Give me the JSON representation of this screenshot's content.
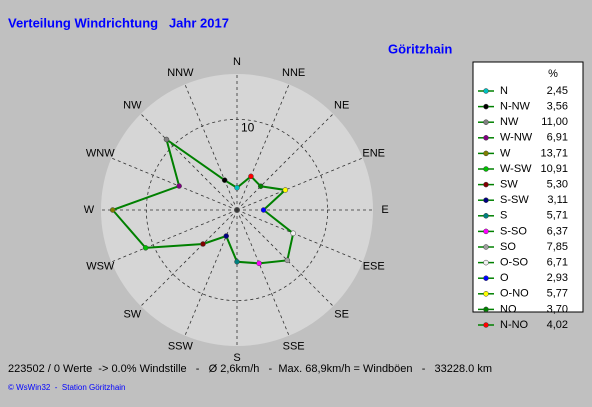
{
  "chart_data": {
    "type": "windrose",
    "title": "Verteilung Windrichtung   Jahr 2017",
    "subtitle": "Göritzhain",
    "direction_labels": [
      "N",
      "NNE",
      "NE",
      "ENE",
      "E",
      "ESE",
      "SE",
      "SSE",
      "S",
      "SSW",
      "SW",
      "WSW",
      "W",
      "WNW",
      "NW",
      "NNW"
    ],
    "legend_header": "%",
    "categories": [
      "N",
      "N-NW",
      "NW",
      "W-NW",
      "W",
      "W-SW",
      "SW",
      "S-SW",
      "S",
      "S-SO",
      "SO",
      "O-SO",
      "O",
      "O-NO",
      "NO",
      "N-NO"
    ],
    "values": [
      2.45,
      3.56,
      11.0,
      6.91,
      13.71,
      10.91,
      5.3,
      3.11,
      5.71,
      6.37,
      7.85,
      6.71,
      2.93,
      5.77,
      3.7,
      4.02
    ],
    "value_labels": [
      "2,45",
      "3,56",
      "11,00",
      "6,91",
      "13,71",
      "10,91",
      "5,30",
      "3,11",
      "5,71",
      "6,37",
      "7,85",
      "6,71",
      "2,93",
      "5,77",
      "3,70",
      "4,02"
    ],
    "colors": [
      "#00c0c0",
      "#000000",
      "#808080",
      "#800080",
      "#808000",
      "#00c000",
      "#800000",
      "#000080",
      "#008080",
      "#ff00ff",
      "#a0a0a0",
      "#f0f0f0",
      "#0000ff",
      "#ffff00",
      "#008000",
      "#ff0000"
    ],
    "line_color": "#008000",
    "rlim": [
      0,
      15
    ],
    "rticks": [
      10
    ]
  },
  "footer": {
    "stats": "223502 / 0 Werte  -> 0.0% Windstille   -   Ø 2,6km/h   -  Max. 68,9km/h = Windböen   -   33228.0 km",
    "credit": "© WsWin32  -  Station Göritzhain"
  }
}
